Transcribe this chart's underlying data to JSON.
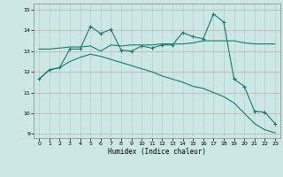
{
  "title": "",
  "xlabel": "Humidex (Indice chaleur)",
  "bg_color": "#cce8e4",
  "grid_color": "#aacccc",
  "line_color": "#1a7a6a",
  "ylim": [
    8.8,
    15.3
  ],
  "xlim": [
    -0.5,
    23.5
  ],
  "yticks": [
    9,
    10,
    11,
    12,
    13,
    14,
    15
  ],
  "xticks": [
    0,
    1,
    2,
    3,
    4,
    5,
    6,
    7,
    8,
    9,
    10,
    11,
    12,
    13,
    14,
    15,
    16,
    17,
    18,
    19,
    20,
    21,
    22,
    23
  ],
  "line1_x": [
    0,
    1,
    2,
    3,
    4,
    5,
    6,
    7,
    8,
    9,
    10,
    11,
    12,
    13,
    14,
    15,
    16,
    17,
    18,
    19,
    20,
    21,
    22,
    23
  ],
  "line1_y": [
    11.65,
    12.1,
    12.2,
    13.1,
    13.1,
    14.2,
    13.85,
    14.05,
    13.05,
    13.0,
    13.25,
    13.15,
    13.3,
    13.3,
    13.9,
    13.7,
    13.6,
    14.8,
    14.4,
    11.65,
    11.3,
    10.1,
    10.05,
    9.5
  ],
  "line2_x": [
    0,
    1,
    2,
    3,
    4,
    5,
    6,
    7,
    8,
    9,
    10,
    11,
    12,
    13,
    14,
    15,
    16,
    17,
    18,
    19,
    20,
    21,
    22,
    23
  ],
  "line2_y": [
    13.1,
    13.1,
    13.15,
    13.2,
    13.2,
    13.25,
    13.0,
    13.3,
    13.25,
    13.3,
    13.3,
    13.3,
    13.35,
    13.35,
    13.35,
    13.4,
    13.5,
    13.5,
    13.5,
    13.5,
    13.4,
    13.35,
    13.35,
    13.35
  ],
  "line3_x": [
    0,
    1,
    2,
    3,
    4,
    5,
    6,
    7,
    8,
    9,
    10,
    11,
    12,
    13,
    14,
    15,
    16,
    17,
    18,
    19,
    20,
    21,
    22,
    23
  ],
  "line3_y": [
    11.65,
    12.1,
    12.2,
    12.5,
    12.7,
    12.85,
    12.75,
    12.6,
    12.45,
    12.3,
    12.15,
    12.0,
    11.8,
    11.65,
    11.5,
    11.3,
    11.2,
    11.0,
    10.8,
    10.5,
    10.0,
    9.5,
    9.2,
    9.05
  ]
}
